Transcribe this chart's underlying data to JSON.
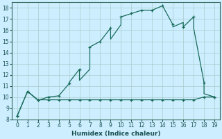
{
  "xlabel": "Humidex (Indice chaleur)",
  "background_color": "#cceeff",
  "grid_color": "#aacccc",
  "line_color": "#1a6b5a",
  "xlim": [
    -0.5,
    19.5
  ],
  "ylim": [
    8,
    18.5
  ],
  "yticks": [
    8,
    9,
    10,
    11,
    12,
    13,
    14,
    15,
    16,
    17,
    18
  ],
  "xticks": [
    0,
    1,
    2,
    3,
    4,
    5,
    6,
    7,
    8,
    9,
    10,
    11,
    12,
    13,
    14,
    15,
    16,
    17,
    18,
    19
  ],
  "upper_x": [
    0,
    1,
    2,
    3,
    3,
    4,
    4,
    5,
    5,
    6,
    6,
    7,
    7,
    8,
    9,
    9,
    10,
    10,
    11,
    12,
    13,
    13,
    14,
    14,
    15,
    15,
    16,
    16,
    17,
    17,
    18,
    18,
    19
  ],
  "upper_y": [
    8.3,
    10.5,
    9.7,
    10.0,
    10.0,
    10.1,
    10.1,
    11.2,
    11.3,
    12.5,
    11.5,
    12.5,
    14.5,
    15.0,
    16.2,
    15.2,
    16.5,
    17.2,
    17.5,
    17.8,
    17.8,
    17.8,
    18.2,
    18.2,
    16.5,
    16.3,
    16.7,
    16.3,
    17.2,
    16.2,
    11.3,
    10.3,
    10.0
  ],
  "lower_x": [
    0,
    1,
    2,
    2,
    3,
    4,
    7,
    14,
    17,
    18,
    19
  ],
  "lower_y": [
    8.3,
    10.5,
    9.75,
    9.75,
    9.75,
    9.75,
    9.75,
    9.75,
    9.75,
    10.0,
    10.0
  ],
  "marker_upper_x": [
    0,
    1,
    2,
    3,
    4,
    5,
    6,
    7,
    8,
    9,
    10,
    11,
    12,
    13,
    14,
    15,
    16,
    17,
    18,
    19
  ],
  "marker_upper_y": [
    8.3,
    10.5,
    9.7,
    10.0,
    10.1,
    11.2,
    12.5,
    14.5,
    15.0,
    16.2,
    17.2,
    17.5,
    17.8,
    17.8,
    18.2,
    16.5,
    16.3,
    17.2,
    11.3,
    10.0
  ],
  "marker_lower_x": [
    0,
    1,
    2,
    3,
    4,
    5,
    6,
    7,
    8,
    9,
    10,
    11,
    12,
    13,
    14,
    15,
    16,
    17,
    18,
    19
  ],
  "marker_lower_y": [
    8.3,
    10.5,
    9.75,
    9.75,
    9.75,
    9.75,
    9.75,
    9.75,
    9.75,
    9.75,
    9.75,
    9.75,
    9.75,
    9.75,
    9.75,
    9.75,
    9.75,
    9.75,
    10.0,
    10.0
  ]
}
